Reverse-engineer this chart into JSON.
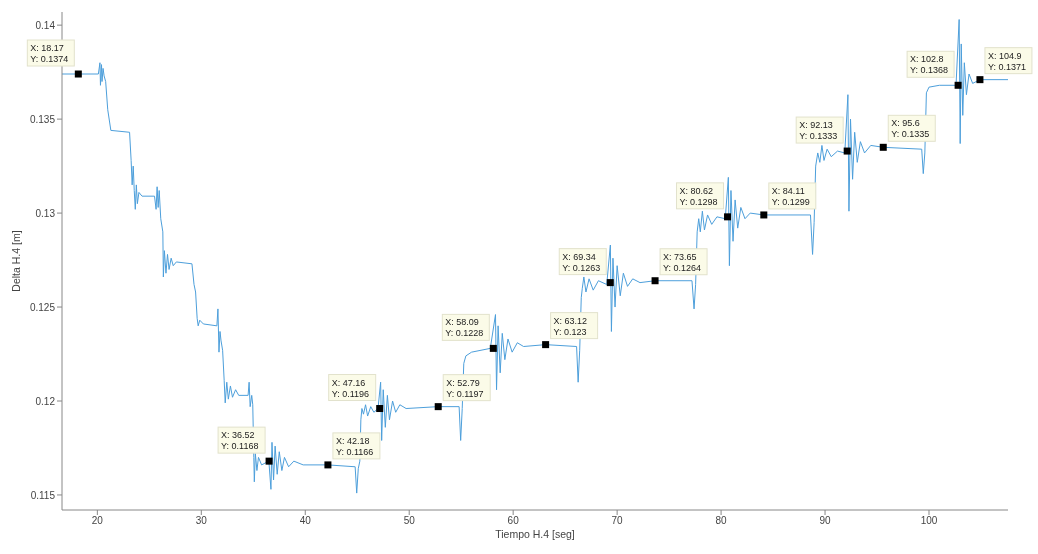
{
  "chart_data": {
    "type": "line",
    "xlabel": "Tiempo H.4 [seg]",
    "ylabel": "Delta H.4 [m]",
    "xlim": [
      16.6,
      107.6
    ],
    "xticks": [
      20,
      30,
      40,
      50,
      60,
      70,
      80,
      90,
      100
    ],
    "ylim": [
      0.1142,
      0.1407
    ],
    "yticks": [
      0.115,
      0.12,
      0.125,
      0.13,
      0.135,
      0.14
    ],
    "grid": false,
    "series": [
      {
        "color": "#4d9fdb",
        "marker": "none",
        "line_style": "solid",
        "x": [
          16.6,
          20.1,
          20.25,
          20.3,
          20.4,
          20.45,
          20.55,
          20.65,
          20.8,
          21.0,
          21.3,
          23.1,
          23.25,
          23.35,
          23.45,
          23.55,
          23.65,
          23.75,
          23.85,
          24.0,
          24.3,
          25.5,
          25.65,
          25.75,
          25.85,
          25.95,
          26.1,
          26.3,
          26.35,
          26.45,
          26.6,
          26.75,
          26.9,
          27.1,
          27.3,
          27.6,
          29.1,
          29.3,
          29.45,
          29.6,
          29.7,
          29.85,
          30.2,
          31.5,
          31.6,
          31.7,
          31.8,
          31.9,
          32.05,
          32.2,
          32.3,
          32.45,
          32.6,
          32.8,
          33.0,
          33.3,
          33.6,
          34.5,
          34.6,
          34.7,
          34.85,
          34.95,
          35.05,
          35.1,
          35.2,
          35.35,
          35.5,
          35.8,
          36.5,
          36.7,
          36.8,
          36.95,
          37.1,
          37.3,
          37.5,
          37.75,
          38.0,
          38.4,
          38.9,
          39.8,
          42.18,
          44.8,
          44.95,
          45.1,
          45.25,
          45.35,
          45.45,
          45.6,
          45.8,
          46.0,
          46.3,
          46.6,
          47.0,
          47.25,
          47.35,
          47.5,
          47.7,
          47.9,
          48.1,
          48.4,
          48.7,
          49.1,
          49.7,
          52.79,
          54.8,
          54.95,
          55.1,
          55.25,
          55.45,
          56.0,
          57.8,
          58.3,
          58.4,
          58.55,
          58.75,
          58.95,
          59.2,
          59.5,
          59.9,
          60.4,
          61.0,
          63.12,
          66.1,
          66.25,
          66.4,
          66.55,
          66.65,
          66.8,
          67.0,
          67.3,
          67.7,
          68.2,
          69.0,
          69.35,
          69.45,
          69.6,
          69.8,
          70.0,
          70.3,
          70.6,
          71.0,
          71.5,
          72.2,
          73.65,
          77.2,
          77.4,
          77.55,
          77.7,
          77.85,
          78.0,
          78.2,
          78.4,
          78.7,
          79.1,
          79.6,
          80.4,
          80.7,
          80.8,
          80.95,
          81.15,
          81.35,
          81.6,
          81.9,
          82.3,
          82.8,
          84.11,
          88.6,
          88.8,
          88.95,
          89.1,
          89.3,
          89.5,
          89.7,
          89.9,
          90.2,
          90.6,
          91.2,
          91.9,
          92.2,
          92.3,
          92.45,
          92.65,
          92.85,
          93.1,
          93.4,
          93.8,
          94.4,
          95.6,
          99.3,
          99.45,
          99.6,
          99.75,
          100.0,
          101.0,
          102.6,
          102.9,
          103.0,
          103.1,
          103.25,
          103.4,
          103.6,
          103.85,
          104.2,
          104.9,
          107.6
        ],
        "values": [
          0.1374,
          0.1374,
          0.138,
          0.1368,
          0.1379,
          0.137,
          0.1377,
          0.1373,
          0.137,
          0.1355,
          0.1344,
          0.1343,
          0.1328,
          0.1315,
          0.1325,
          0.1312,
          0.1302,
          0.1315,
          0.1305,
          0.1311,
          0.1309,
          0.1309,
          0.1302,
          0.1314,
          0.1303,
          0.1312,
          0.1297,
          0.129,
          0.1266,
          0.128,
          0.1268,
          0.1278,
          0.127,
          0.1276,
          0.1272,
          0.1274,
          0.1273,
          0.1262,
          0.1258,
          0.1244,
          0.124,
          0.1243,
          0.1241,
          0.124,
          0.1249,
          0.1226,
          0.1237,
          0.1232,
          0.1227,
          0.1211,
          0.1199,
          0.121,
          0.1201,
          0.1208,
          0.1202,
          0.1206,
          0.1203,
          0.1203,
          0.121,
          0.1197,
          0.1203,
          0.1198,
          0.117,
          0.1157,
          0.1172,
          0.1163,
          0.117,
          0.1166,
          0.1168,
          0.1153,
          0.1178,
          0.1158,
          0.1176,
          0.1161,
          0.1173,
          0.1163,
          0.117,
          0.1165,
          0.1168,
          0.1166,
          0.1166,
          0.1165,
          0.1151,
          0.1164,
          0.1168,
          0.119,
          0.1196,
          0.1193,
          0.1198,
          0.1192,
          0.1197,
          0.1194,
          0.1196,
          0.121,
          0.1179,
          0.1206,
          0.1186,
          0.1203,
          0.119,
          0.12,
          0.1194,
          0.1198,
          0.1196,
          0.1197,
          0.1197,
          0.1179,
          0.1196,
          0.122,
          0.1224,
          0.1226,
          0.1228,
          0.1246,
          0.1206,
          0.124,
          0.1215,
          0.1236,
          0.1222,
          0.1233,
          0.1226,
          0.1231,
          0.1229,
          0.123,
          0.1229,
          0.121,
          0.1227,
          0.1255,
          0.126,
          0.1266,
          0.1258,
          0.1265,
          0.1259,
          0.1264,
          0.1262,
          0.1283,
          0.1237,
          0.1276,
          0.125,
          0.1272,
          0.1256,
          0.1268,
          0.1261,
          0.1265,
          0.1263,
          0.1264,
          0.1264,
          0.1249,
          0.1262,
          0.129,
          0.1297,
          0.129,
          0.1301,
          0.1291,
          0.1299,
          0.1294,
          0.1298,
          0.1297,
          0.1319,
          0.1272,
          0.1312,
          0.1285,
          0.1307,
          0.1292,
          0.1303,
          0.1297,
          0.13,
          0.1299,
          0.1299,
          0.1278,
          0.1295,
          0.1325,
          0.1332,
          0.1327,
          0.1336,
          0.1328,
          0.1334,
          0.133,
          0.1333,
          0.1332,
          0.1363,
          0.1301,
          0.135,
          0.1318,
          0.1343,
          0.1327,
          0.1338,
          0.1332,
          0.1336,
          0.1335,
          0.1334,
          0.1321,
          0.1332,
          0.1364,
          0.1367,
          0.1368,
          0.1368,
          0.1403,
          0.1337,
          0.139,
          0.1352,
          0.138,
          0.1363,
          0.1374,
          0.1369,
          0.1371,
          0.1371
        ]
      },
      {
        "type": "scatter",
        "color": "#000000",
        "marker": "square",
        "x": [
          18.17,
          36.52,
          42.18,
          47.16,
          52.79,
          58.09,
          63.12,
          69.34,
          73.65,
          80.62,
          84.11,
          92.13,
          95.6,
          102.8,
          104.9
        ],
        "values": [
          0.1374,
          0.1168,
          0.1166,
          0.1196,
          0.1197,
          0.1228,
          0.123,
          0.1263,
          0.1264,
          0.1298,
          0.1299,
          0.1333,
          0.1335,
          0.1368,
          0.1371
        ]
      }
    ],
    "annotations": [
      {
        "text": "X: 18.17\nY: 0.1374",
        "x": 18.17,
        "y": 0.1374
      },
      {
        "text": "X: 36.52\nY: 0.1168",
        "x": 36.52,
        "y": 0.1168
      },
      {
        "text": "X: 42.18\nY: 0.1166",
        "x": 42.18,
        "y": 0.1166
      },
      {
        "text": "X: 47.16\nY: 0.1196",
        "x": 47.16,
        "y": 0.1196
      },
      {
        "text": "X: 52.79\nY: 0.1197",
        "x": 52.79,
        "y": 0.1197
      },
      {
        "text": "X: 58.09\nY: 0.1228",
        "x": 58.09,
        "y": 0.1228
      },
      {
        "text": "X: 63.12\nY: 0.123",
        "x": 63.12,
        "y": 0.123
      },
      {
        "text": "X: 69.34\nY: 0.1263",
        "x": 69.34,
        "y": 0.1263
      },
      {
        "text": "X: 73.65\nY: 0.1264",
        "x": 73.65,
        "y": 0.1264
      },
      {
        "text": "X: 80.62\nY: 0.1298",
        "x": 80.62,
        "y": 0.1298
      },
      {
        "text": "X: 84.11\nY: 0.1299",
        "x": 84.11,
        "y": 0.1299
      },
      {
        "text": "X: 92.13\nY: 0.1333",
        "x": 92.13,
        "y": 0.1333
      },
      {
        "text": "X: 95.6\nY: 0.1335",
        "x": 95.6,
        "y": 0.1335
      },
      {
        "text": "X: 102.8\nY: 0.1368",
        "x": 102.8,
        "y": 0.1368
      },
      {
        "text": "X: 104.9\nY: 0.1371",
        "x": 104.9,
        "y": 0.1371
      }
    ]
  }
}
